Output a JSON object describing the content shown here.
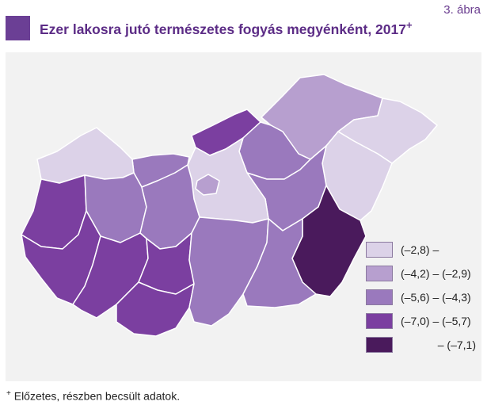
{
  "figure_label": "3. ábra",
  "title": "Ezer lakosra jutó természetes fogyás megyénként, 2017",
  "title_mark": "+",
  "footnote_mark": "+",
  "footnote": "Előzetes, részben becsült adatok.",
  "legend": [
    {
      "label": "(–2,8) –",
      "color": "#dcd2e8"
    },
    {
      "label": "(–4,2) – (–2,9)",
      "color": "#b79fcf"
    },
    {
      "label": "(–5,6) – (–4,3)",
      "color": "#9a79bd"
    },
    {
      "label": "(–7,0) – (–5,7)",
      "color": "#7b3fa0"
    },
    {
      "label": "– (–7,1)",
      "color": "#4a1a5c"
    }
  ],
  "colors": {
    "accent": "#6b3f95",
    "map_background": "#f2f2f2",
    "border": "#ffffff"
  }
}
